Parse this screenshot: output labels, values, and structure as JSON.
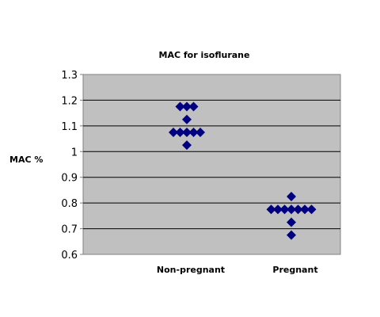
{
  "chart_data": {
    "type": "scatter",
    "title": "MAC for isoflurane",
    "xlabel": "",
    "ylabel": "MAC %",
    "categories": [
      "Non-pregnant",
      "Pregnant"
    ],
    "ylim": [
      0.6,
      1.3
    ],
    "yticks": [
      "0.6",
      "0.7",
      "0.8",
      "0.9",
      "1",
      "1.1",
      "1.2",
      "1.3"
    ],
    "grid": true,
    "legend": false,
    "plot_background": "#c0c0c0",
    "marker_color": "#000080",
    "series": [
      {
        "category": "Non-pregnant",
        "values": [
          1.175,
          1.175,
          1.175,
          1.125,
          1.075,
          1.075,
          1.075,
          1.075,
          1.075,
          1.025
        ]
      },
      {
        "category": "Pregnant",
        "values": [
          0.825,
          0.775,
          0.775,
          0.775,
          0.775,
          0.775,
          0.775,
          0.775,
          0.725,
          0.675
        ]
      }
    ]
  }
}
